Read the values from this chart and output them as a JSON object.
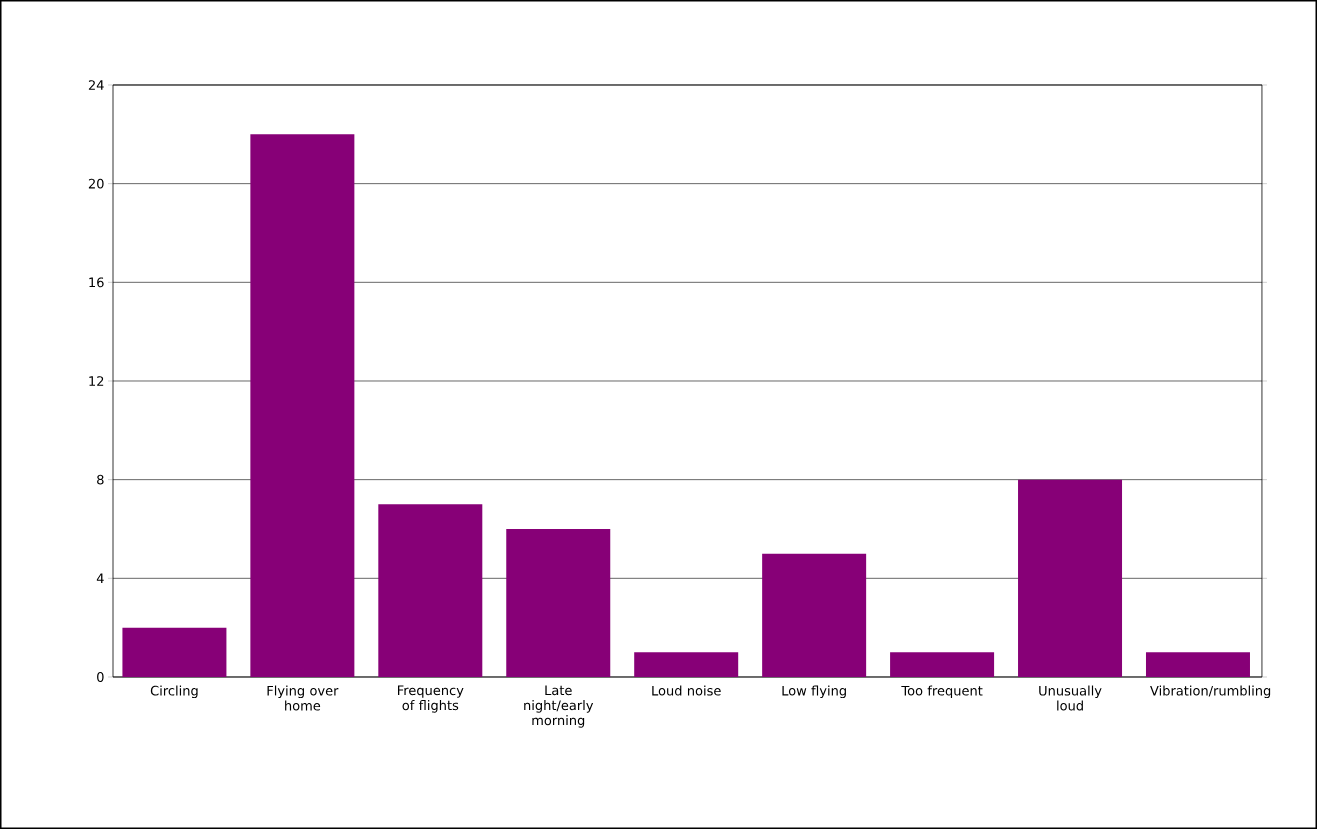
{
  "chart_data": {
    "type": "bar",
    "categories": [
      "Circling",
      "Flying over home",
      "Frequency of flights",
      "Late night/early morning",
      "Loud noise",
      "Low flying",
      "Too frequent",
      "Unusually loud",
      "Vibration/rumbling"
    ],
    "values": [
      2,
      22,
      7,
      6,
      1,
      5,
      1,
      8,
      1
    ],
    "color": "#870077",
    "ylim": [
      0,
      24
    ],
    "yticks": [
      0,
      4,
      8,
      12,
      16,
      20,
      24
    ],
    "grid": "y"
  }
}
